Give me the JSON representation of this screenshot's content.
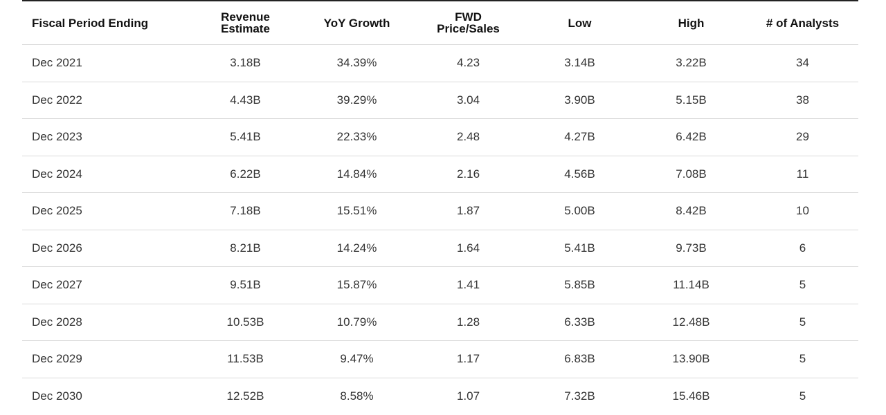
{
  "table": {
    "header": [
      "Fiscal Period Ending",
      "Revenue Estimate",
      "YoY Growth",
      "FWD Price/Sales",
      "Low",
      "High",
      "# of Analysts"
    ],
    "rows": [
      [
        "Dec 2021",
        "3.18B",
        "34.39%",
        "4.23",
        "3.14B",
        "3.22B",
        "34"
      ],
      [
        "Dec 2022",
        "4.43B",
        "39.29%",
        "3.04",
        "3.90B",
        "5.15B",
        "38"
      ],
      [
        "Dec 2023",
        "5.41B",
        "22.33%",
        "2.48",
        "4.27B",
        "6.42B",
        "29"
      ],
      [
        "Dec 2024",
        "6.22B",
        "14.84%",
        "2.16",
        "4.56B",
        "7.08B",
        "11"
      ],
      [
        "Dec 2025",
        "7.18B",
        "15.51%",
        "1.87",
        "5.00B",
        "8.42B",
        "10"
      ],
      [
        "Dec 2026",
        "8.21B",
        "14.24%",
        "1.64",
        "5.41B",
        "9.73B",
        "6"
      ],
      [
        "Dec 2027",
        "9.51B",
        "15.87%",
        "1.41",
        "5.85B",
        "11.14B",
        "5"
      ],
      [
        "Dec 2028",
        "10.53B",
        "10.79%",
        "1.28",
        "6.33B",
        "12.48B",
        "5"
      ],
      [
        "Dec 2029",
        "11.53B",
        "9.47%",
        "1.17",
        "6.83B",
        "13.90B",
        "5"
      ],
      [
        "Dec 2030",
        "12.52B",
        "8.58%",
        "1.07",
        "7.32B",
        "15.46B",
        "5"
      ]
    ]
  }
}
